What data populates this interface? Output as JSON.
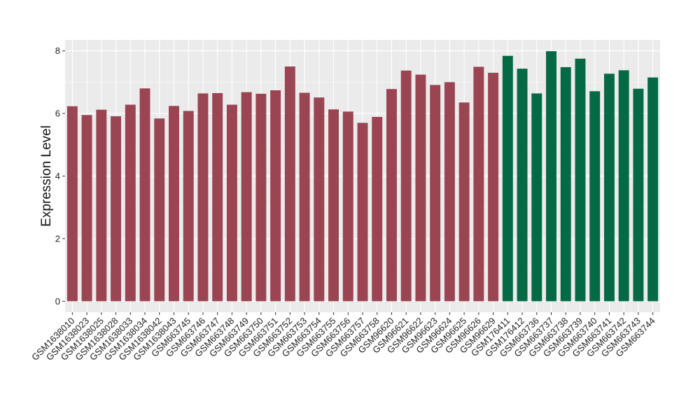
{
  "chart_data": {
    "type": "bar",
    "ylabel": "Expression Level",
    "xlabel": "",
    "ylim": [
      -0.35,
      8.35
    ],
    "yticks": [
      0,
      2,
      4,
      6,
      8
    ],
    "grid": true,
    "background": "#ebebeb",
    "colors": {
      "group1": "#9b4452",
      "group2": "#046a45"
    },
    "categories": [
      "GSM1638010",
      "GSM1638023",
      "GSM1638025",
      "GSM1638028",
      "GSM1638033",
      "GSM1638034",
      "GSM1638042",
      "GSM1638043",
      "GSM663745",
      "GSM663746",
      "GSM663747",
      "GSM663748",
      "GSM663749",
      "GSM663750",
      "GSM663751",
      "GSM663752",
      "GSM663753",
      "GSM663754",
      "GSM663755",
      "GSM663756",
      "GSM663757",
      "GSM663758",
      "GSM96620",
      "GSM96621",
      "GSM96622",
      "GSM96623",
      "GSM96624",
      "GSM96625",
      "GSM96626",
      "GSM96629",
      "GSM176411",
      "GSM176412",
      "GSM663736",
      "GSM663737",
      "GSM663738",
      "GSM663739",
      "GSM663740",
      "GSM663741",
      "GSM663742",
      "GSM663743",
      "GSM663744"
    ],
    "values": [
      6.23,
      5.95,
      6.12,
      5.91,
      6.28,
      6.8,
      5.84,
      6.24,
      6.08,
      6.64,
      6.65,
      6.28,
      6.68,
      6.63,
      6.74,
      7.5,
      6.66,
      6.51,
      6.13,
      6.06,
      5.7,
      5.89,
      6.78,
      7.37,
      7.24,
      6.91,
      7.0,
      6.35,
      7.49,
      7.3,
      7.84,
      7.43,
      6.64,
      7.99,
      7.48,
      7.75,
      6.71,
      7.27,
      7.38,
      6.79,
      7.15
    ],
    "groups": [
      1,
      1,
      1,
      1,
      1,
      1,
      1,
      1,
      1,
      1,
      1,
      1,
      1,
      1,
      1,
      1,
      1,
      1,
      1,
      1,
      1,
      1,
      1,
      1,
      1,
      1,
      1,
      1,
      1,
      1,
      2,
      2,
      2,
      2,
      2,
      2,
      2,
      2,
      2,
      2,
      2
    ]
  }
}
